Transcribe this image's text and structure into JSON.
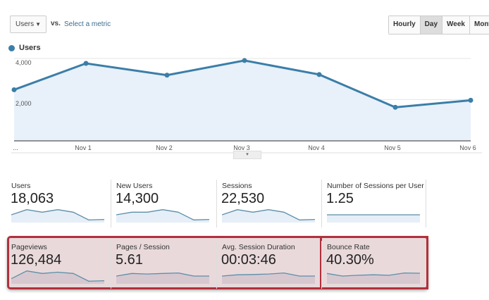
{
  "toolbar": {
    "metric_select": "Users",
    "vs_label": "vs.",
    "select_metric_link": "Select a metric",
    "granularity": [
      {
        "label": "Hourly",
        "active": false
      },
      {
        "label": "Day",
        "active": true
      },
      {
        "label": "Week",
        "active": false
      },
      {
        "label": "Month",
        "active": false
      }
    ]
  },
  "chart_data": {
    "type": "area",
    "legend": [
      {
        "name": "Users",
        "color": "#3b7ea8"
      }
    ],
    "legend_placement": "top-left",
    "x": [
      "...",
      "Nov 1",
      "Nov 2",
      "Nov 3",
      "Nov 4",
      "Nov 5",
      "Nov 6"
    ],
    "series": [
      {
        "name": "Users",
        "values": [
          2480,
          3760,
          3190,
          3900,
          3220,
          1630,
          1970
        ]
      }
    ],
    "yticks": [
      "4,000",
      "2,000"
    ],
    "ytick_values": [
      4000,
      2000
    ],
    "ylim": [
      0,
      4000
    ],
    "grid": true,
    "colors": {
      "line": "#3b7ea8",
      "fill": "#e8f0f9"
    }
  },
  "scorecards": [
    {
      "label": "Users",
      "value": "18,063",
      "spark": [
        3,
        5,
        4,
        5,
        4,
        1,
        1.2
      ],
      "highlighted": false
    },
    {
      "label": "New Users",
      "value": "14,300",
      "spark": [
        3,
        4,
        4,
        5,
        4,
        1,
        1.2
      ],
      "highlighted": false
    },
    {
      "label": "Sessions",
      "value": "22,530",
      "spark": [
        3,
        5,
        4,
        5,
        4,
        1,
        1.2
      ],
      "highlighted": false
    },
    {
      "label": "Number of Sessions per User",
      "value": "1.25",
      "spark": [
        3,
        3,
        3,
        3,
        3,
        3,
        3
      ],
      "highlighted": false
    },
    {
      "label": "Pageviews",
      "value": "126,484",
      "spark": [
        2,
        5,
        4,
        4.5,
        4,
        1,
        1.2
      ],
      "highlighted": true
    },
    {
      "label": "Pages / Session",
      "value": "5.61",
      "spark": [
        3,
        4,
        3.8,
        4,
        4.2,
        3,
        3
      ],
      "highlighted": true
    },
    {
      "label": "Avg. Session Duration",
      "value": "00:03:46",
      "spark": [
        3,
        3.5,
        3.6,
        3.8,
        4.2,
        3,
        3
      ],
      "highlighted": true
    },
    {
      "label": "Bounce Rate",
      "value": "40.30%",
      "spark": [
        4,
        3,
        3.3,
        3.5,
        3.3,
        4.2,
        4.1
      ],
      "highlighted": true
    }
  ],
  "expand_toggle": "▾"
}
